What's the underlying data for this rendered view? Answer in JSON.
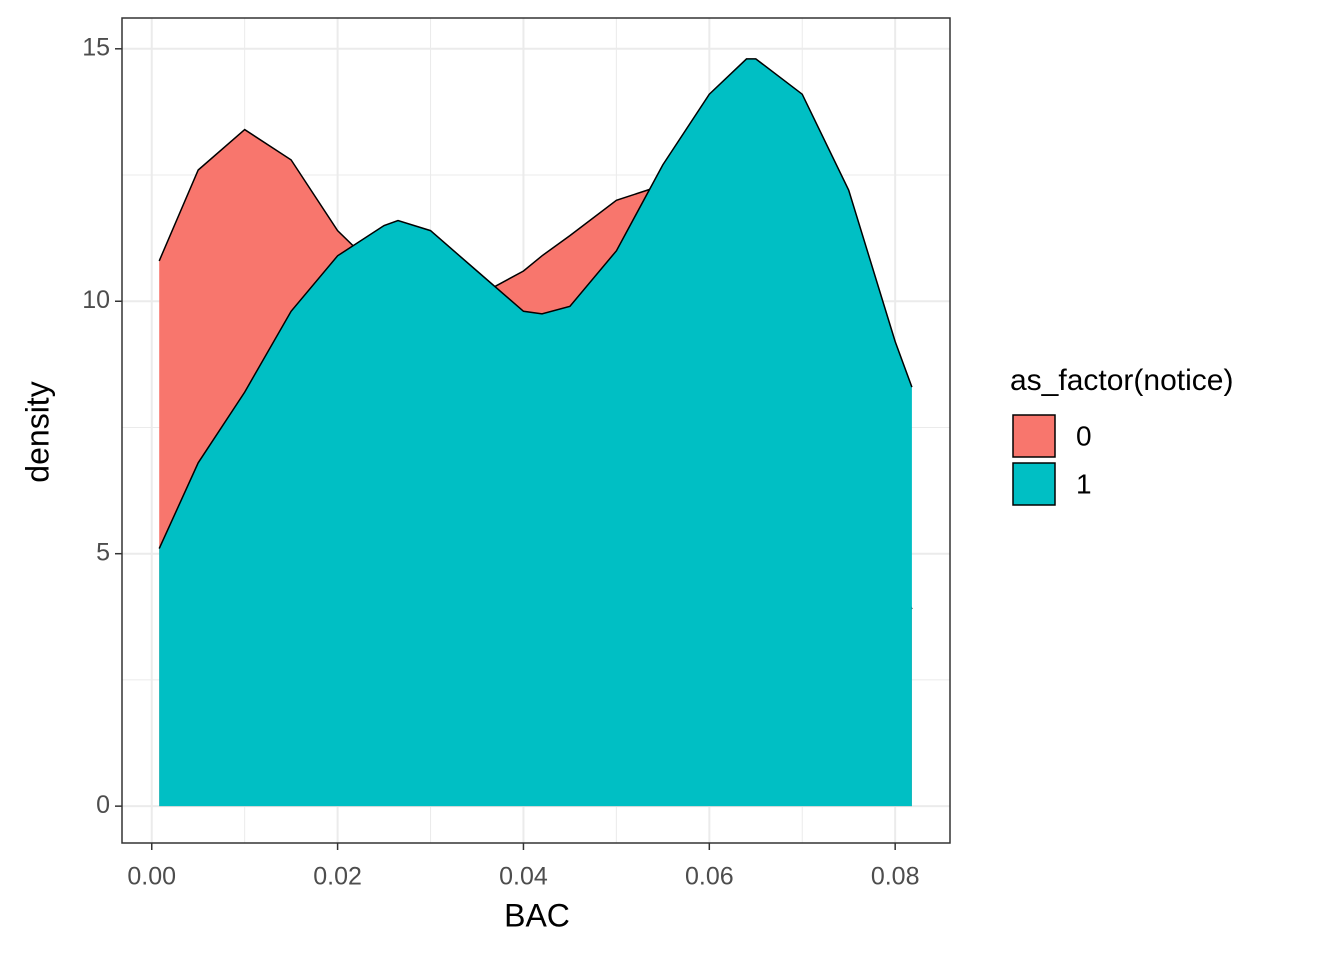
{
  "chart_data": {
    "type": "area",
    "x_label": "BAC",
    "y_label": "density",
    "legend_title": "as_factor(notice)",
    "x": [
      0.0008,
      0.005,
      0.01,
      0.015,
      0.02,
      0.025,
      0.0265,
      0.03,
      0.035,
      0.04,
      0.042,
      0.045,
      0.05,
      0.055,
      0.06,
      0.064,
      0.065,
      0.07,
      0.075,
      0.08,
      0.0818
    ],
    "series": [
      {
        "name": "0",
        "color": "#F8766D",
        "values": [
          10.8,
          12.6,
          13.4,
          12.8,
          11.4,
          10.5,
          10.3,
          10.1,
          10.1,
          10.6,
          10.9,
          11.3,
          12.0,
          12.3,
          12.0,
          11.2,
          10.9,
          9.2,
          7.2,
          4.7,
          3.9
        ]
      },
      {
        "name": "1",
        "color": "#00BFC4",
        "values": [
          5.1,
          6.8,
          8.2,
          9.8,
          10.9,
          11.5,
          11.6,
          11.4,
          10.6,
          9.8,
          9.75,
          9.9,
          11.0,
          12.7,
          14.1,
          14.8,
          14.8,
          14.1,
          12.2,
          9.2,
          8.3
        ]
      }
    ],
    "xlim": [
      -0.0032,
      0.0859
    ],
    "ylim": [
      -0.73,
      15.61
    ],
    "xticks": [
      {
        "value": 0,
        "label": "0.00"
      },
      {
        "value": 0.02,
        "label": "0.02"
      },
      {
        "value": 0.04,
        "label": "0.04"
      },
      {
        "value": 0.06,
        "label": "0.06"
      },
      {
        "value": 0.08,
        "label": "0.08"
      }
    ],
    "yticks": [
      0,
      5,
      10,
      15
    ],
    "x_minor_ticks": [
      0.01,
      0.03,
      0.05,
      0.07
    ],
    "y_minor_ticks": [
      2.5,
      7.5,
      12.5
    ],
    "grid": true,
    "legend_position": "right"
  }
}
